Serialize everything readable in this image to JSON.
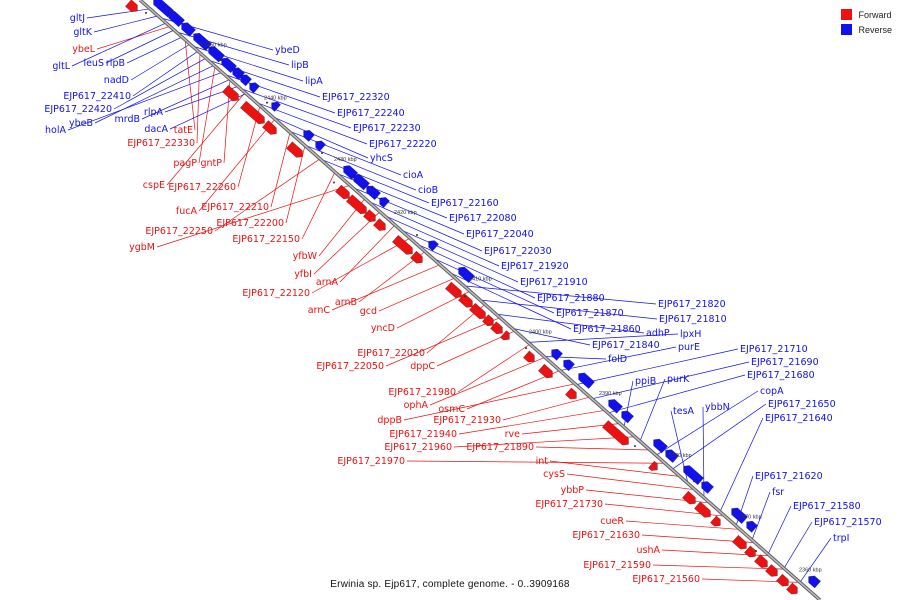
{
  "title": "Erwinia sp. Ejp617, complete genome. - 0..3909168",
  "legend": [
    {
      "label": "Forward",
      "color": "#ee1111"
    },
    {
      "label": "Reverse",
      "color": "#1111ee"
    }
  ],
  "colors": {
    "forward": "#ee1111",
    "reverse": "#1111ee",
    "backbone": "#9a9a9a"
  },
  "ticks": [
    "2450 kbp",
    "2440 kbp",
    "2430 kbp",
    "2420 kbp",
    "2410 kbp",
    "2400 kbp",
    "2390 kbp",
    "2380 kbp",
    "2370 kbp",
    "2360 kbp"
  ],
  "labels_forward_left": [
    "ybeL",
    "tatE",
    "EJP617_22330",
    "pagP",
    "gntP",
    "cspE",
    "EJP617_22260",
    "fucA",
    "EJP617_22210",
    "EJP617_22200",
    "EJP617_22250",
    "EJP617_22150",
    "ygbM",
    "yfbW",
    "yfbI",
    "arnA",
    "EJP617_22120",
    "arnB",
    "arnC",
    "gcd",
    "yncD",
    "EJP617_22020",
    "EJP617_22050",
    "dppC",
    "EJP617_21980",
    "ophA",
    "osmC",
    "dppB",
    "EJP617_21930",
    "EJP617_21940",
    "rve",
    "EJP617_21960",
    "EJP617_21890",
    "EJP617_21970",
    "int",
    "cysS",
    "ybbP",
    "EJP617_21730",
    "cueR",
    "EJP617_21630",
    "ushA",
    "EJP617_21590",
    "EJP617_21560"
  ],
  "labels_reverse_left": [
    "gltJ",
    "gltK",
    "gltL",
    "leuS",
    "rlpB",
    "nadD",
    "EJP617_22410",
    "EJP617_22420",
    "ybeB",
    "holA",
    "mrdB",
    "rlpA",
    "dacA"
  ],
  "labels_reverse_right": [
    "ybeD",
    "lipB",
    "lipA",
    "EJP617_22320",
    "EJP617_22240",
    "EJP617_22230",
    "EJP617_22220",
    "yhcS",
    "cioA",
    "cioB",
    "EJP617_22160",
    "EJP617_22080",
    "EJP617_22040",
    "EJP617_22030",
    "EJP617_21920",
    "EJP617_21910",
    "EJP617_21880",
    "EJP617_21870",
    "EJP617_21860",
    "EJP617_21820",
    "EJP617_21810",
    "adhP",
    "EJP617_21840",
    "lpxH",
    "folD",
    "purE",
    "EJP617_21710",
    "EJP617_21690",
    "EJP617_21680",
    "ppiB",
    "purK",
    "copA",
    "EJP617_21650",
    "tesA",
    "ybbN",
    "EJP617_21640",
    "EJP617_21620",
    "fsr",
    "EJP617_21580",
    "EJP617_21570",
    "trpI"
  ]
}
